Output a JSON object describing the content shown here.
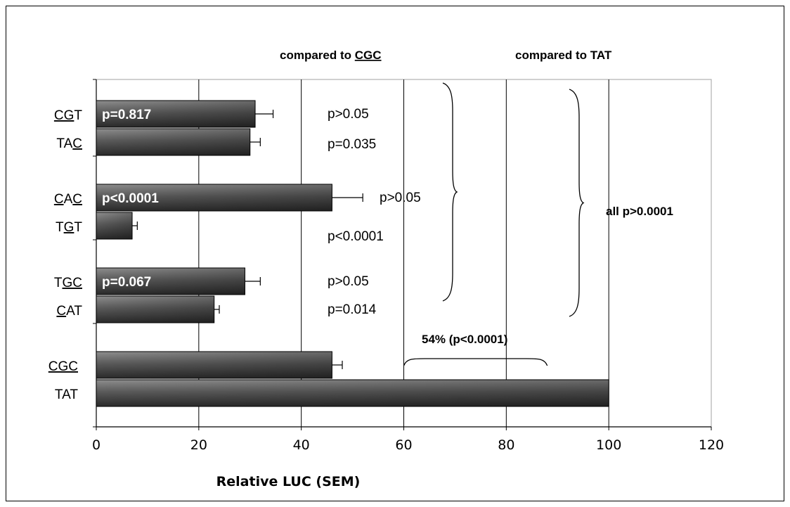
{
  "chart_data": {
    "type": "bar",
    "orientation": "horizontal",
    "xlabel": "Relative LUC (SEM)",
    "xlim": [
      0,
      120
    ],
    "xticks": [
      "0",
      "20",
      "40",
      "60",
      "80",
      "100",
      "120"
    ],
    "grid": true,
    "bars": [
      {
        "group": 0,
        "category": [
          {
            "t": "CG",
            "u": true
          },
          {
            "t": "T",
            "u": false
          }
        ],
        "value": 31,
        "error": 3.5,
        "bar_label": "p=0.817",
        "annotation": "p>0.05"
      },
      {
        "group": 0,
        "category": [
          {
            "t": "TA",
            "u": false
          },
          {
            "t": "C",
            "u": true
          }
        ],
        "value": 30,
        "error": 2.0,
        "bar_label": "",
        "annotation": "p=0.035"
      },
      {
        "group": 1,
        "category": [
          {
            "t": "C",
            "u": true
          },
          {
            "t": "A",
            "u": false
          },
          {
            "t": "C",
            "u": true
          }
        ],
        "value": 46,
        "error": 6.0,
        "bar_label": "p<0.0001",
        "annotation": "p>0.05"
      },
      {
        "group": 1,
        "category": [
          {
            "t": "T",
            "u": false
          },
          {
            "t": "G",
            "u": true
          },
          {
            "t": "T",
            "u": false
          }
        ],
        "value": 7,
        "error": 1.0,
        "bar_label": "",
        "annotation": "p<0.0001"
      },
      {
        "group": 2,
        "category": [
          {
            "t": "T",
            "u": false
          },
          {
            "t": "GC",
            "u": true
          }
        ],
        "value": 29,
        "error": 3.0,
        "bar_label": "p=0.067",
        "annotation": "p>0.05"
      },
      {
        "group": 2,
        "category": [
          {
            "t": "C",
            "u": true
          },
          {
            "t": "AT",
            "u": false
          }
        ],
        "value": 23,
        "error": 1.0,
        "bar_label": "",
        "annotation": "p=0.014"
      },
      {
        "group": 3,
        "category": [
          {
            "t": "CGC",
            "u": true
          }
        ],
        "value": 46,
        "error": 2.0,
        "bar_label": "",
        "annotation": ""
      },
      {
        "group": 3,
        "category": [
          {
            "t": "TAT",
            "u": false
          }
        ],
        "value": 100,
        "error": 0,
        "bar_label": "",
        "annotation": ""
      }
    ],
    "headers": {
      "compared_cgc": [
        {
          "t": "compared to ",
          "u": false
        },
        {
          "t": "CGC",
          "u": true
        }
      ],
      "compared_tat": [
        {
          "t": "compared to TAT",
          "u": false
        }
      ]
    },
    "side_label": "all p>0.0001",
    "bracket_label": "54% (p<0.0001)",
    "bracket_range": [
      60,
      88
    ]
  }
}
